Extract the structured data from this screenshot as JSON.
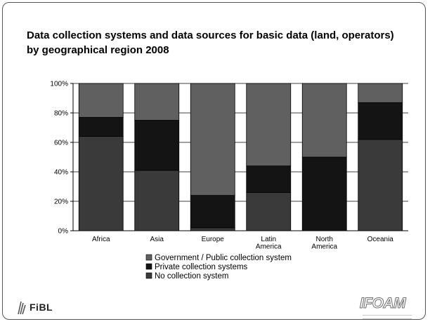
{
  "chart_data": {
    "type": "bar",
    "stacked": true,
    "percent": true,
    "title": "Data collection systems and data sources for basic data (land, operators) by geographical region 2008",
    "categories": [
      "Africa",
      "Asia",
      "Europe",
      "Latin America",
      "North America",
      "Oceania"
    ],
    "y_tick_labels": [
      "0%",
      "20%",
      "40%",
      "60%",
      "80%",
      "100%"
    ],
    "ylim": [
      0,
      100
    ],
    "grid": true,
    "legend_position": "bottom",
    "series": [
      {
        "name": "No collection system",
        "values": [
          64,
          41,
          2,
          26,
          0,
          62
        ],
        "color": "#3a3a3a"
      },
      {
        "name": "Private collection systems",
        "values": [
          13,
          34,
          22,
          18,
          50,
          25
        ],
        "color": "#141414"
      },
      {
        "name": "Government / Public collection system",
        "values": [
          23,
          25,
          76,
          56,
          50,
          13
        ],
        "color": "#606060"
      }
    ],
    "legend_order": [
      "Government / Public collection system",
      "Private collection systems",
      "No collection system"
    ]
  },
  "logos": {
    "left": "FiBL",
    "right": "IFOAM"
  }
}
